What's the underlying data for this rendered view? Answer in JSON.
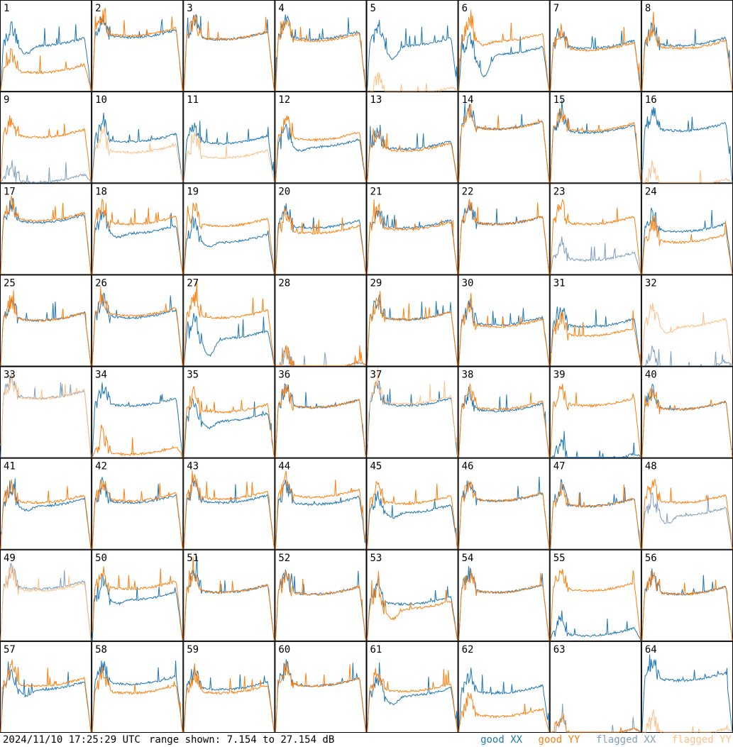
{
  "footer": {
    "timestamp": "2024/11/10 17:25:29 UTC",
    "range_text": "range shown: 7.154 to 27.154 dB"
  },
  "legend": [
    {
      "label": "good XX",
      "color": "#1f77b4"
    },
    {
      "label": "good YY",
      "color": "#ff7f0e"
    },
    {
      "label": "flagged XX",
      "color": "#7f9fbf"
    },
    {
      "label": "flagged YY",
      "color": "#ffbf87"
    }
  ],
  "chart_data": {
    "type": "line",
    "layout": "8x8 small multiples",
    "ylim_db": [
      7.154,
      27.154
    ],
    "x_axis": "frequency channel (unlabeled)",
    "grid": false,
    "panels": [
      {
        "id": "1",
        "xx": "good",
        "yy": "good",
        "xx_level": 0.55,
        "yy_level": 0.25,
        "xx_dip": 0.1,
        "yy_dip": 0.0
      },
      {
        "id": "2",
        "xx": "good",
        "yy": "good",
        "xx_level": 0.64,
        "yy_level": 0.66,
        "xx_dip": 0.0,
        "yy_dip": 0.0
      },
      {
        "id": "3",
        "xx": "good",
        "yy": "good",
        "xx_level": 0.62,
        "yy_level": 0.62,
        "xx_dip": 0.0,
        "yy_dip": 0.0
      },
      {
        "id": "4",
        "xx": "good",
        "yy": "good",
        "xx_level": 0.62,
        "yy_level": 0.6,
        "xx_dip": 0.0,
        "yy_dip": 0.0
      },
      {
        "id": "5",
        "xx": "good",
        "yy": "flagged",
        "xx_level": 0.55,
        "yy_level": 0.0,
        "xx_dip": 0.15,
        "yy_dip": 0.0
      },
      {
        "id": "6",
        "xx": "good",
        "yy": "good",
        "xx_level": 0.45,
        "yy_level": 0.6,
        "xx_dip": 0.25,
        "yy_dip": 0.05
      },
      {
        "id": "7",
        "xx": "good",
        "yy": "good",
        "xx_level": 0.52,
        "yy_level": 0.5,
        "xx_dip": 0.0,
        "yy_dip": 0.0
      },
      {
        "id": "8",
        "xx": "good",
        "yy": "good",
        "xx_level": 0.55,
        "yy_level": 0.52,
        "xx_dip": 0.0,
        "yy_dip": 0.0
      },
      {
        "id": "9",
        "xx": "flagged",
        "yy": "good",
        "xx_level": 0.05,
        "yy_level": 0.55,
        "xx_dip": 0.0,
        "yy_dip": 0.0
      },
      {
        "id": "10",
        "xx": "good",
        "yy": "flagged",
        "xx_level": 0.5,
        "yy_level": 0.38,
        "xx_dip": 0.0,
        "yy_dip": 0.0
      },
      {
        "id": "11",
        "xx": "good",
        "yy": "flagged",
        "xx_level": 0.48,
        "yy_level": 0.32,
        "xx_dip": 0.0,
        "yy_dip": 0.0
      },
      {
        "id": "12",
        "xx": "good",
        "yy": "good",
        "xx_level": 0.44,
        "yy_level": 0.52,
        "xx_dip": 0.05,
        "yy_dip": 0.0
      },
      {
        "id": "13",
        "xx": "good",
        "yy": "good",
        "xx_level": 0.42,
        "yy_level": 0.4,
        "xx_dip": 0.0,
        "yy_dip": 0.0
      },
      {
        "id": "14",
        "xx": "good",
        "yy": "good",
        "xx_level": 0.64,
        "yy_level": 0.64,
        "xx_dip": 0.0,
        "yy_dip": 0.0
      },
      {
        "id": "15",
        "xx": "good",
        "yy": "good",
        "xx_level": 0.6,
        "yy_level": 0.62,
        "xx_dip": 0.0,
        "yy_dip": 0.0
      },
      {
        "id": "16",
        "xx": "good",
        "yy": "flagged",
        "xx_level": 0.62,
        "yy_level": 0.0,
        "xx_dip": 0.0,
        "yy_dip": 0.0
      },
      {
        "id": "17",
        "xx": "good",
        "yy": "good",
        "xx_level": 0.62,
        "yy_level": 0.64,
        "xx_dip": 0.0,
        "yy_dip": 0.0
      },
      {
        "id": "18",
        "xx": "good",
        "yy": "good",
        "xx_level": 0.5,
        "yy_level": 0.6,
        "xx_dip": 0.05,
        "yy_dip": 0.0
      },
      {
        "id": "19",
        "xx": "good",
        "yy": "good",
        "xx_level": 0.4,
        "yy_level": 0.58,
        "xx_dip": 0.05,
        "yy_dip": 0.0
      },
      {
        "id": "20",
        "xx": "good",
        "yy": "good",
        "xx_level": 0.56,
        "yy_level": 0.5,
        "xx_dip": 0.0,
        "yy_dip": 0.0
      },
      {
        "id": "21",
        "xx": "good",
        "yy": "good",
        "xx_level": 0.56,
        "yy_level": 0.54,
        "xx_dip": 0.0,
        "yy_dip": 0.0
      },
      {
        "id": "22",
        "xx": "good",
        "yy": "good",
        "xx_level": 0.6,
        "yy_level": 0.6,
        "xx_dip": 0.0,
        "yy_dip": 0.0
      },
      {
        "id": "23",
        "xx": "flagged",
        "yy": "good",
        "xx_level": 0.2,
        "yy_level": 0.6,
        "xx_dip": 0.0,
        "yy_dip": 0.0
      },
      {
        "id": "24",
        "xx": "good",
        "yy": "good",
        "xx_level": 0.52,
        "yy_level": 0.4,
        "xx_dip": 0.0,
        "yy_dip": 0.0
      },
      {
        "id": "25",
        "xx": "good",
        "yy": "good",
        "xx_level": 0.55,
        "yy_level": 0.55,
        "xx_dip": 0.0,
        "yy_dip": 0.0
      },
      {
        "id": "26",
        "xx": "good",
        "yy": "good",
        "xx_level": 0.58,
        "yy_level": 0.6,
        "xx_dip": 0.0,
        "yy_dip": 0.0
      },
      {
        "id": "27",
        "xx": "good",
        "yy": "good",
        "xx_level": 0.35,
        "yy_level": 0.58,
        "xx_dip": 0.2,
        "yy_dip": 0.0
      },
      {
        "id": "28",
        "xx": "flagged",
        "yy": "good",
        "xx_level": 0.0,
        "yy_level": 0.0,
        "xx_dip": 0.0,
        "yy_dip": 0.0
      },
      {
        "id": "29",
        "xx": "good",
        "yy": "good",
        "xx_level": 0.56,
        "yy_level": 0.56,
        "xx_dip": 0.0,
        "yy_dip": 0.0
      },
      {
        "id": "30",
        "xx": "good",
        "yy": "good",
        "xx_level": 0.5,
        "yy_level": 0.48,
        "xx_dip": 0.0,
        "yy_dip": 0.0
      },
      {
        "id": "31",
        "xx": "good",
        "yy": "good",
        "xx_level": 0.48,
        "yy_level": 0.38,
        "xx_dip": 0.0,
        "yy_dip": 0.0
      },
      {
        "id": "32",
        "xx": "flagged",
        "yy": "flagged",
        "xx_level": 0.0,
        "yy_level": 0.48,
        "xx_dip": 0.0,
        "yy_dip": 0.08
      },
      {
        "id": "33",
        "xx": "flagged",
        "yy": "flagged",
        "xx_level": 0.7,
        "yy_level": 0.7,
        "xx_dip": 0.0,
        "yy_dip": 0.0
      },
      {
        "id": "34",
        "xx": "good",
        "yy": "good",
        "xx_level": 0.62,
        "yy_level": 0.08,
        "xx_dip": 0.0,
        "yy_dip": 0.0
      },
      {
        "id": "35",
        "xx": "good",
        "yy": "good",
        "xx_level": 0.45,
        "yy_level": 0.55,
        "xx_dip": 0.08,
        "yy_dip": 0.0
      },
      {
        "id": "36",
        "xx": "good",
        "yy": "good",
        "xx_level": 0.6,
        "yy_level": 0.6,
        "xx_dip": 0.0,
        "yy_dip": 0.0
      },
      {
        "id": "37",
        "xx": "good",
        "yy": "flagged",
        "xx_level": 0.62,
        "yy_level": 0.64,
        "xx_dip": 0.0,
        "yy_dip": 0.0
      },
      {
        "id": "38",
        "xx": "good",
        "yy": "good",
        "xx_level": 0.56,
        "yy_level": 0.58,
        "xx_dip": 0.0,
        "yy_dip": 0.0
      },
      {
        "id": "39",
        "xx": "good",
        "yy": "good",
        "xx_level": 0.0,
        "yy_level": 0.62,
        "xx_dip": 0.0,
        "yy_dip": 0.0
      },
      {
        "id": "40",
        "xx": "good",
        "yy": "good",
        "xx_level": 0.58,
        "yy_level": 0.58,
        "xx_dip": 0.0,
        "yy_dip": 0.0
      },
      {
        "id": "41",
        "xx": "good",
        "yy": "good",
        "xx_level": 0.52,
        "yy_level": 0.56,
        "xx_dip": 0.05,
        "yy_dip": 0.0
      },
      {
        "id": "42",
        "xx": "good",
        "yy": "good",
        "xx_level": 0.56,
        "yy_level": 0.58,
        "xx_dip": 0.0,
        "yy_dip": 0.0
      },
      {
        "id": "43",
        "xx": "good",
        "yy": "good",
        "xx_level": 0.56,
        "yy_level": 0.6,
        "xx_dip": 0.0,
        "yy_dip": 0.0
      },
      {
        "id": "44",
        "xx": "good",
        "yy": "good",
        "xx_level": 0.54,
        "yy_level": 0.62,
        "xx_dip": 0.0,
        "yy_dip": 0.0
      },
      {
        "id": "45",
        "xx": "good",
        "yy": "good",
        "xx_level": 0.45,
        "yy_level": 0.55,
        "xx_dip": 0.06,
        "yy_dip": 0.0
      },
      {
        "id": "46",
        "xx": "good",
        "yy": "good",
        "xx_level": 0.58,
        "yy_level": 0.58,
        "xx_dip": 0.0,
        "yy_dip": 0.0
      },
      {
        "id": "47",
        "xx": "good",
        "yy": "good",
        "xx_level": 0.52,
        "yy_level": 0.52,
        "xx_dip": 0.0,
        "yy_dip": 0.0
      },
      {
        "id": "48",
        "xx": "flagged",
        "yy": "good",
        "xx_level": 0.42,
        "yy_level": 0.56,
        "xx_dip": 0.1,
        "yy_dip": 0.0
      },
      {
        "id": "49",
        "xx": "flagged",
        "yy": "flagged",
        "xx_level": 0.62,
        "yy_level": 0.6,
        "xx_dip": 0.0,
        "yy_dip": 0.0
      },
      {
        "id": "50",
        "xx": "good",
        "yy": "good",
        "xx_level": 0.5,
        "yy_level": 0.62,
        "xx_dip": 0.05,
        "yy_dip": 0.0
      },
      {
        "id": "51",
        "xx": "good",
        "yy": "good",
        "xx_level": 0.58,
        "yy_level": 0.58,
        "xx_dip": 0.0,
        "yy_dip": 0.0
      },
      {
        "id": "52",
        "xx": "good",
        "yy": "good",
        "xx_level": 0.56,
        "yy_level": 0.56,
        "xx_dip": 0.0,
        "yy_dip": 0.0
      },
      {
        "id": "53",
        "xx": "good",
        "yy": "good",
        "xx_level": 0.45,
        "yy_level": 0.4,
        "xx_dip": 0.0,
        "yy_dip": 0.12
      },
      {
        "id": "54",
        "xx": "good",
        "yy": "good",
        "xx_level": 0.58,
        "yy_level": 0.58,
        "xx_dip": 0.0,
        "yy_dip": 0.0
      },
      {
        "id": "55",
        "xx": "good",
        "yy": "good",
        "xx_level": 0.1,
        "yy_level": 0.6,
        "xx_dip": 0.0,
        "yy_dip": 0.0
      },
      {
        "id": "56",
        "xx": "good",
        "yy": "good",
        "xx_level": 0.56,
        "yy_level": 0.56,
        "xx_dip": 0.0,
        "yy_dip": 0.0
      },
      {
        "id": "57",
        "xx": "good",
        "yy": "good",
        "xx_level": 0.52,
        "yy_level": 0.56,
        "xx_dip": 0.08,
        "yy_dip": 0.0
      },
      {
        "id": "58",
        "xx": "good",
        "yy": "good",
        "xx_level": 0.58,
        "yy_level": 0.48,
        "xx_dip": 0.0,
        "yy_dip": 0.0
      },
      {
        "id": "59",
        "xx": "good",
        "yy": "good",
        "xx_level": 0.52,
        "yy_level": 0.48,
        "xx_dip": 0.0,
        "yy_dip": 0.0
      },
      {
        "id": "60",
        "xx": "good",
        "yy": "good",
        "xx_level": 0.56,
        "yy_level": 0.56,
        "xx_dip": 0.0,
        "yy_dip": 0.0
      },
      {
        "id": "61",
        "xx": "good",
        "yy": "good",
        "xx_level": 0.45,
        "yy_level": 0.5,
        "xx_dip": 0.1,
        "yy_dip": 0.0
      },
      {
        "id": "62",
        "xx": "good",
        "yy": "good",
        "xx_level": 0.48,
        "yy_level": 0.22,
        "xx_dip": 0.0,
        "yy_dip": 0.0
      },
      {
        "id": "63",
        "xx": "flagged",
        "yy": "good",
        "xx_level": 0.0,
        "yy_level": 0.0,
        "xx_dip": 0.0,
        "yy_dip": 0.0
      },
      {
        "id": "64",
        "xx": "good",
        "yy": "flagged",
        "xx_level": 0.62,
        "yy_level": 0.0,
        "xx_dip": 0.0,
        "yy_dip": 0.0
      }
    ]
  }
}
